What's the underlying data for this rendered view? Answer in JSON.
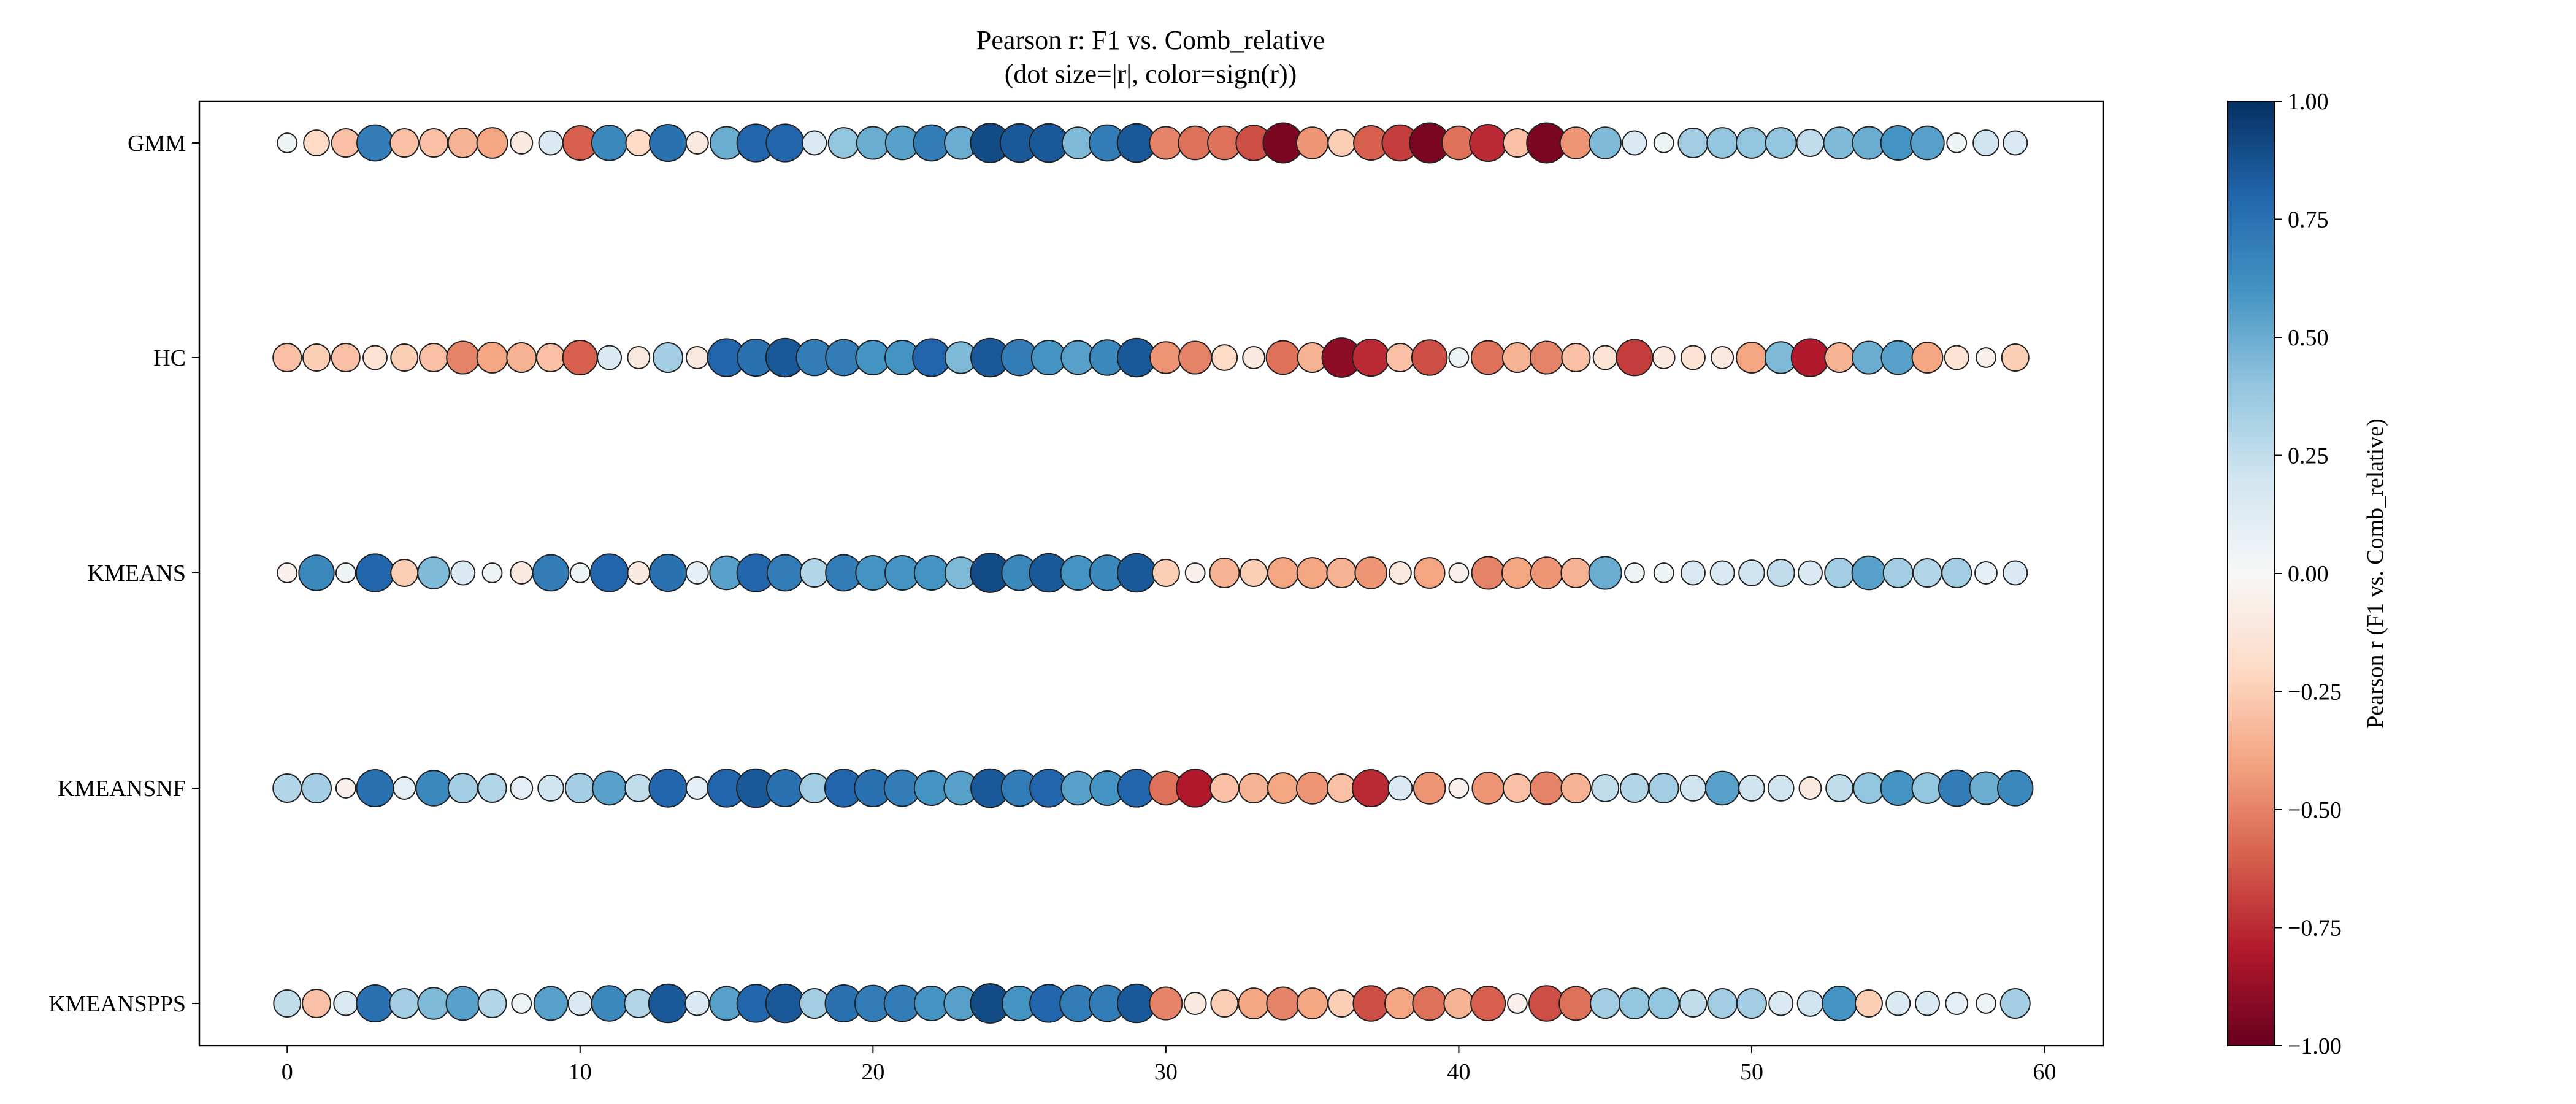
{
  "chart_data": {
    "type": "scatter",
    "title": "Pearson r: F1 vs. Comb_relative",
    "subtitle": "(dot size=|r|, color=sign(r))",
    "xlabel": "",
    "ylabel": "",
    "xlim": [
      -3,
      62
    ],
    "xticks": [
      0,
      10,
      20,
      30,
      40,
      50,
      60
    ],
    "grid": false,
    "categories": [
      "GMM",
      "HC",
      "KMEANS",
      "KMEANSNF",
      "KMEANSPPS"
    ],
    "x": [
      0,
      1,
      2,
      3,
      4,
      5,
      6,
      7,
      8,
      9,
      10,
      11,
      12,
      13,
      14,
      15,
      16,
      17,
      18,
      19,
      20,
      21,
      22,
      23,
      24,
      25,
      26,
      27,
      28,
      29,
      30,
      31,
      32,
      33,
      34,
      35,
      36,
      37,
      38,
      39,
      40,
      41,
      42,
      43,
      44,
      45,
      46,
      47,
      48,
      49,
      50,
      51,
      52,
      53,
      54,
      55,
      56,
      57,
      58,
      59
    ],
    "series": [
      {
        "name": "GMM",
        "values": [
          0.05,
          -0.2,
          -0.3,
          0.7,
          -0.3,
          -0.3,
          -0.35,
          -0.4,
          -0.1,
          0.15,
          -0.6,
          0.65,
          -0.2,
          0.75,
          -0.1,
          0.5,
          0.8,
          0.8,
          0.15,
          0.4,
          0.5,
          0.55,
          0.7,
          0.5,
          0.9,
          0.85,
          0.85,
          0.45,
          0.7,
          0.85,
          -0.5,
          -0.55,
          -0.55,
          -0.65,
          -0.95,
          -0.45,
          -0.25,
          -0.6,
          -0.7,
          -0.95,
          -0.55,
          -0.75,
          -0.3,
          -0.95,
          -0.45,
          0.45,
          0.15,
          0.05,
          0.35,
          0.4,
          0.4,
          0.4,
          0.25,
          0.45,
          0.5,
          0.6,
          0.55,
          0.05,
          0.2,
          0.15
        ]
      },
      {
        "name": "HC",
        "values": [
          -0.3,
          -0.25,
          -0.3,
          -0.15,
          -0.25,
          -0.3,
          -0.5,
          -0.4,
          -0.35,
          -0.3,
          -0.6,
          0.15,
          -0.1,
          0.35,
          -0.1,
          0.8,
          0.75,
          0.85,
          0.7,
          0.7,
          0.6,
          0.6,
          0.8,
          0.45,
          0.85,
          0.7,
          0.6,
          0.55,
          0.65,
          0.85,
          -0.45,
          -0.5,
          -0.2,
          -0.1,
          -0.55,
          -0.35,
          -0.9,
          -0.75,
          -0.3,
          -0.65,
          0.05,
          -0.55,
          -0.35,
          -0.5,
          -0.3,
          -0.15,
          -0.7,
          -0.1,
          -0.15,
          -0.1,
          -0.4,
          0.45,
          -0.8,
          -0.35,
          0.5,
          0.55,
          -0.4,
          -0.15,
          -0.05,
          -0.25
        ]
      },
      {
        "name": "KMEANS",
        "values": [
          -0.05,
          0.65,
          0.05,
          0.8,
          -0.25,
          0.45,
          0.15,
          0.05,
          -0.1,
          0.7,
          0.05,
          0.8,
          -0.1,
          0.75,
          0.1,
          0.55,
          0.8,
          0.7,
          0.3,
          0.7,
          0.6,
          0.6,
          0.6,
          0.45,
          0.9,
          0.65,
          0.85,
          0.6,
          0.65,
          0.85,
          -0.25,
          -0.05,
          -0.35,
          -0.25,
          -0.4,
          -0.4,
          -0.35,
          -0.45,
          -0.1,
          -0.4,
          -0.05,
          -0.5,
          -0.4,
          -0.45,
          -0.35,
          0.5,
          0.05,
          0.05,
          0.15,
          0.15,
          0.2,
          0.25,
          0.15,
          0.35,
          0.55,
          0.35,
          0.3,
          0.35,
          0.1,
          0.15
        ]
      },
      {
        "name": "KMEANSNF",
        "values": [
          0.3,
          0.35,
          -0.05,
          0.75,
          0.1,
          0.65,
          0.35,
          0.3,
          0.1,
          0.2,
          0.35,
          0.55,
          0.25,
          0.8,
          0.1,
          0.8,
          0.85,
          0.75,
          0.35,
          0.8,
          0.75,
          0.7,
          0.6,
          0.55,
          0.85,
          0.7,
          0.8,
          0.55,
          0.6,
          0.8,
          -0.55,
          -0.8,
          -0.3,
          -0.35,
          -0.4,
          -0.45,
          -0.3,
          -0.75,
          0.15,
          -0.45,
          -0.05,
          -0.45,
          -0.3,
          -0.5,
          -0.35,
          0.25,
          0.3,
          0.35,
          0.2,
          0.55,
          0.2,
          0.2,
          -0.1,
          0.25,
          0.4,
          0.6,
          0.4,
          0.7,
          0.5,
          0.65
        ]
      },
      {
        "name": "KMEANSPPS",
        "values": [
          0.25,
          -0.3,
          0.15,
          0.75,
          0.35,
          0.45,
          0.55,
          0.3,
          0.05,
          0.55,
          0.15,
          0.65,
          0.3,
          0.85,
          0.15,
          0.55,
          0.8,
          0.85,
          0.35,
          0.75,
          0.7,
          0.7,
          0.6,
          0.55,
          0.9,
          0.6,
          0.8,
          0.7,
          0.7,
          0.85,
          -0.5,
          -0.1,
          -0.25,
          -0.4,
          -0.5,
          -0.4,
          -0.25,
          -0.65,
          -0.4,
          -0.55,
          -0.35,
          -0.6,
          -0.05,
          -0.65,
          -0.55,
          0.35,
          0.4,
          0.4,
          0.25,
          0.35,
          0.35,
          0.15,
          0.2,
          0.6,
          -0.25,
          0.15,
          0.15,
          0.1,
          0.05,
          0.35
        ]
      }
    ],
    "colorbar": {
      "label": "Pearson r (F1 vs. Comb_relative)",
      "range": [
        -1,
        1
      ],
      "ticks": [
        "1.00",
        "0.75",
        "0.50",
        "0.25",
        "0.00",
        "−0.25",
        "−0.50",
        "−0.75",
        "−1.00"
      ],
      "colormap": "RdBu",
      "stops": [
        "#67001f",
        "#b2182b",
        "#d6604d",
        "#f4a582",
        "#fddbc7",
        "#f7f7f7",
        "#d1e5f0",
        "#92c5de",
        "#4393c3",
        "#2166ac",
        "#053061"
      ]
    }
  }
}
